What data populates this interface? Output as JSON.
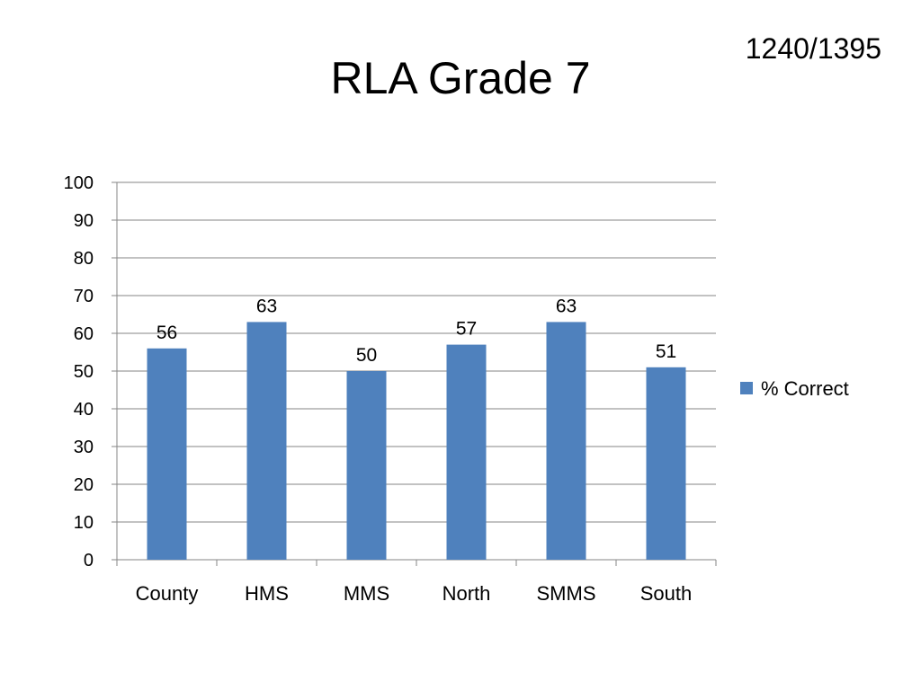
{
  "slide": {
    "title": "RLA Grade 7",
    "counter": "1240/1395"
  },
  "chart_data": {
    "type": "bar",
    "title": "",
    "xlabel": "",
    "ylabel": "",
    "categories": [
      "County",
      "HMS",
      "MMS",
      "North",
      "SMMS",
      "South"
    ],
    "series": [
      {
        "name": "% Correct",
        "values": [
          56,
          63,
          50,
          57,
          63,
          51
        ]
      }
    ],
    "ylim": [
      0,
      100
    ],
    "yticks": [
      0,
      10,
      20,
      30,
      40,
      50,
      60,
      70,
      80,
      90,
      100
    ],
    "grid": true,
    "data_labels": true,
    "legend": "right",
    "colors": {
      "bar": "#4F81BD",
      "grid": "#868686",
      "axis": "#868686"
    }
  }
}
